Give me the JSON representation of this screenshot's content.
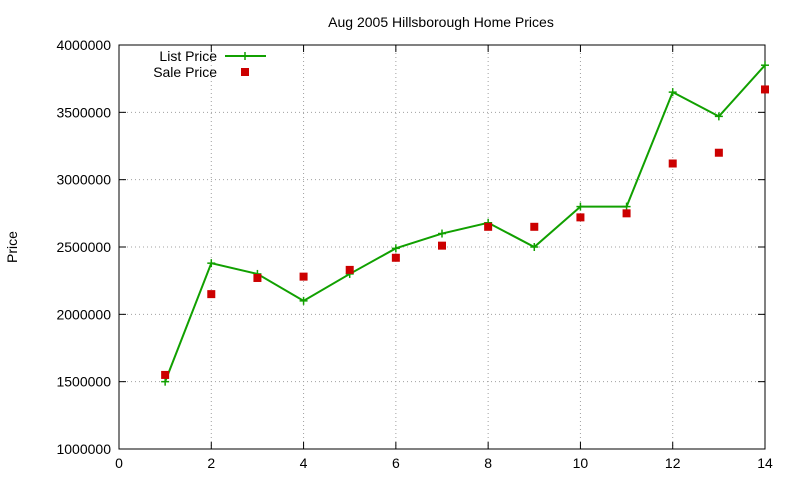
{
  "chart_data": {
    "type": "line",
    "title": "Aug 2005 Hillsborough Home Prices",
    "xlabel": "",
    "ylabel": "Price",
    "xlim": [
      0,
      14
    ],
    "ylim": [
      1000000,
      4000000
    ],
    "xticks": [
      "0",
      "2",
      "4",
      "6",
      "8",
      "10",
      "12",
      "14"
    ],
    "yticks": [
      "1000000",
      "1500000",
      "2000000",
      "2500000",
      "3000000",
      "3500000",
      "4000000"
    ],
    "grid": true,
    "legend_position": "top-left",
    "series": [
      {
        "name": "List Price",
        "style": "linespoints",
        "color": "#11a000",
        "x": [
          1,
          2,
          3,
          4,
          5,
          6,
          7,
          8,
          9,
          10,
          11,
          12,
          13,
          14
        ],
        "y": [
          1500000,
          2380000,
          2300000,
          2100000,
          2300000,
          2490000,
          2600000,
          2680000,
          2500000,
          2800000,
          2800000,
          3650000,
          3470000,
          3850000
        ]
      },
      {
        "name": "Sale Price",
        "style": "points",
        "color": "#cc0000",
        "x": [
          1,
          2,
          3,
          4,
          5,
          6,
          7,
          8,
          9,
          10,
          11,
          12,
          13,
          14
        ],
        "y": [
          1550000,
          2150000,
          2270000,
          2280000,
          2330000,
          2420000,
          2510000,
          2650000,
          2650000,
          2720000,
          2750000,
          3120000,
          3200000,
          3670000
        ]
      }
    ]
  }
}
